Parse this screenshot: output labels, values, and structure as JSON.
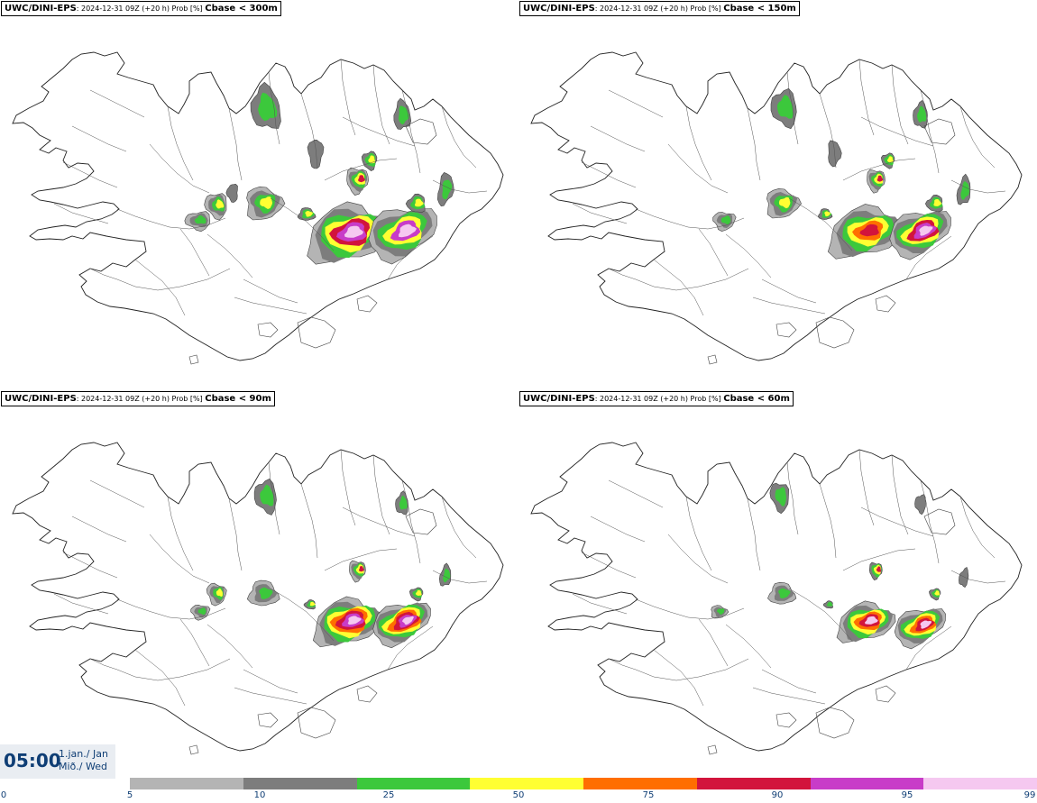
{
  "panels": [
    {
      "model": "UWC/DINI-EPS",
      "meta": ": 2024-12-31 09Z (+20 h) Prob [%] ",
      "variable": "Cbase < 300m"
    },
    {
      "model": "UWC/DINI-EPS",
      "meta": ": 2024-12-31 09Z (+20 h) Prob [%] ",
      "variable": "Cbase < 150m"
    },
    {
      "model": "UWC/DINI-EPS",
      "meta": ": 2024-12-31 09Z (+20 h) Prob [%] ",
      "variable": "Cbase < 90m"
    },
    {
      "model": "UWC/DINI-EPS",
      "meta": ": 2024-12-31 09Z (+20 h) Prob [%] ",
      "variable": "Cbase < 60m"
    }
  ],
  "valid_time": {
    "time": "05:00",
    "date_line1": "1.jan./ Jan",
    "date_line2": "Mið./ Wed"
  },
  "colorbar": {
    "ticks": [
      "0",
      "5",
      "10",
      "25",
      "50",
      "75",
      "90",
      "95",
      "99"
    ],
    "colors": [
      "#b4b4b4",
      "#7d7d7d",
      "#3cc83c",
      "#ffff32",
      "#ff6e00",
      "#d2143c",
      "#c83cc8",
      "#f5c8f0"
    ],
    "outline_color": "#3a3a3a"
  }
}
